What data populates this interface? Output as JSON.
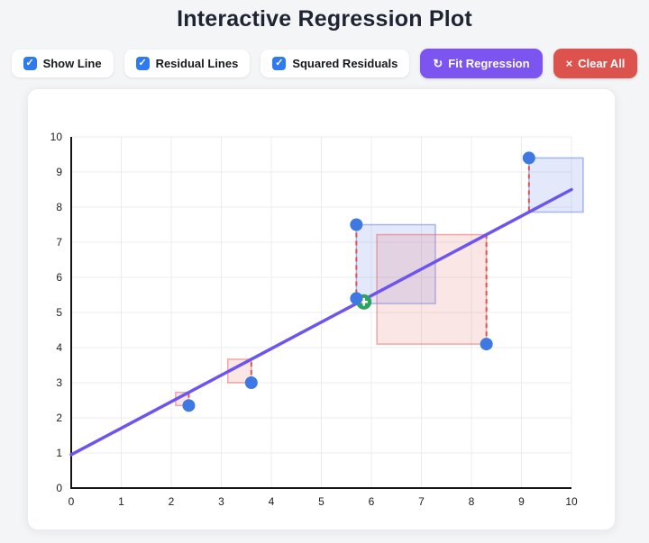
{
  "title": "Interactive Regression Plot",
  "controls": {
    "checkboxes": [
      {
        "label": "Show Line",
        "checked": true,
        "checkmark": "✓"
      },
      {
        "label": "Residual Lines",
        "checked": true,
        "checkmark": "✓"
      },
      {
        "label": "Squared Residuals",
        "checked": true,
        "checkmark": "✓"
      }
    ],
    "fit_button": {
      "label": "Fit Regression",
      "icon": "↻"
    },
    "clear_button": {
      "label": "Clear All",
      "icon": "×"
    }
  },
  "chart_data": {
    "type": "scatter",
    "title": "Interactive Regression Plot",
    "xlabel": "",
    "ylabel": "",
    "xlim": [
      0,
      10
    ],
    "ylim": [
      0,
      10
    ],
    "xticks": [
      0,
      1,
      2,
      3,
      4,
      5,
      6,
      7,
      8,
      9,
      10
    ],
    "yticks": [
      0,
      1,
      2,
      3,
      4,
      5,
      6,
      7,
      8,
      9,
      10
    ],
    "grid": true,
    "points": [
      {
        "x": 2.35,
        "y": 2.35
      },
      {
        "x": 3.6,
        "y": 3.0
      },
      {
        "x": 5.7,
        "y": 5.4
      },
      {
        "x": 5.7,
        "y": 7.5
      },
      {
        "x": 8.3,
        "y": 4.1
      },
      {
        "x": 9.15,
        "y": 9.4
      }
    ],
    "hover_point": {
      "x": 5.85,
      "y": 5.3
    },
    "regression_line": {
      "slope": 0.755,
      "intercept": 0.95,
      "x_start": 0,
      "x_end": 10
    },
    "show_line": true,
    "show_residual_lines": true,
    "show_squared_residuals": true,
    "colors": {
      "point": "#3d78e3",
      "hover_point": "#2ea35f",
      "line": "#6c55ee",
      "residual_line": "#e0524d",
      "square_pos_fill": "rgba(99,132,229,0.18)",
      "square_pos_stroke": "rgba(99,132,229,0.55)",
      "square_neg_fill": "rgba(233,104,104,0.17)",
      "square_neg_stroke": "rgba(233,104,104,0.55)",
      "axis": "#141414",
      "gridline": "#ececec",
      "tick_label": "#1c1c1c"
    }
  }
}
